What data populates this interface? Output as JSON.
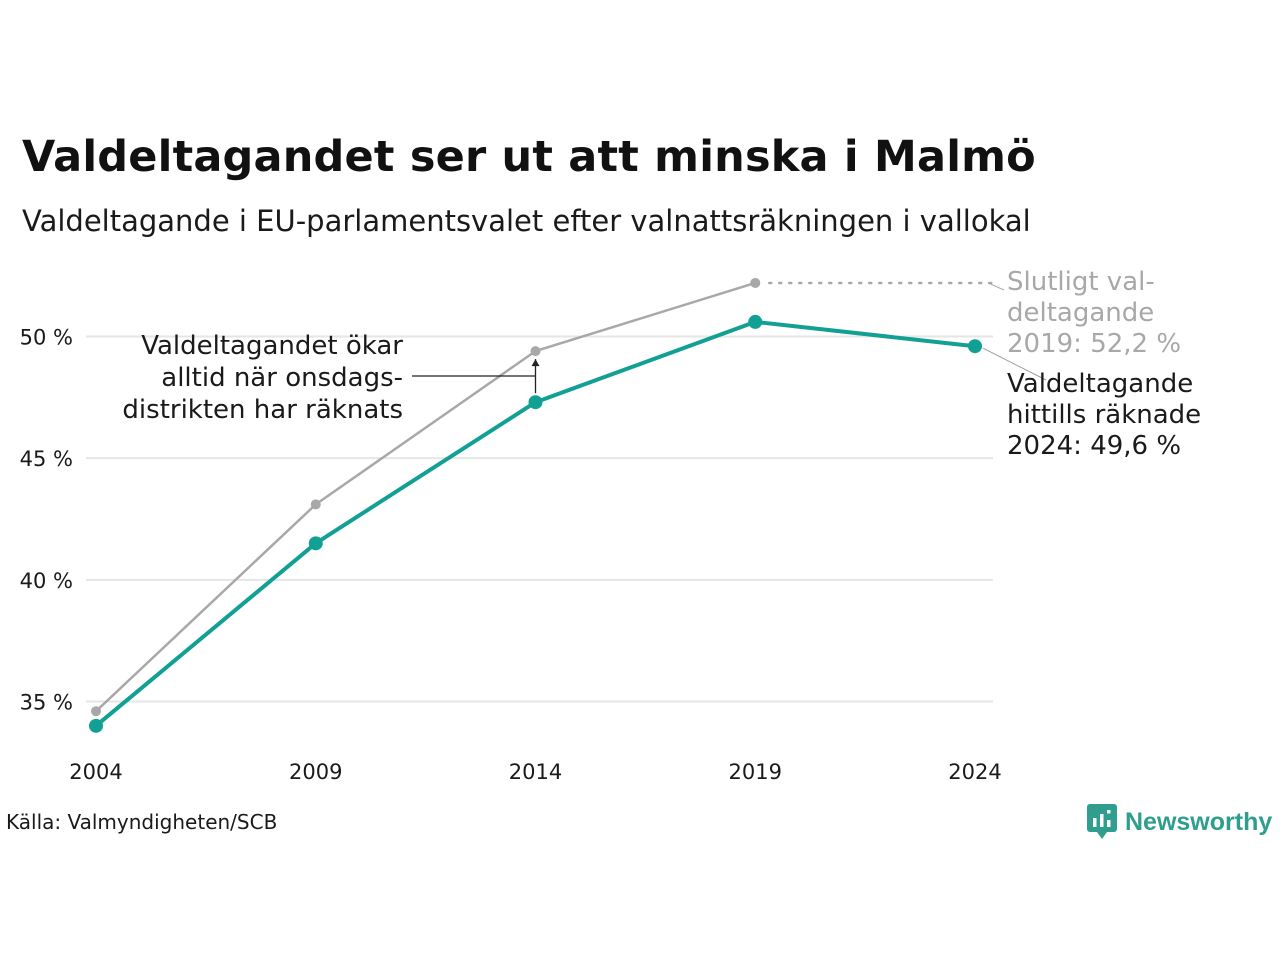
{
  "title": "Valdeltagandet ser ut att minska i Malmö",
  "subtitle": "Valdeltagande i EU-parlamentsvalet efter valnattsräkningen i vallokal",
  "source": "Källa: Valmyndigheten/SCB",
  "brand": "Newsworthy",
  "colors": {
    "counted": "#12a095",
    "final": "#a8a8a8",
    "grid": "#e6e6e6",
    "text": "#1a1a1a"
  },
  "chart_data": {
    "type": "line",
    "x": [
      2004,
      2009,
      2014,
      2019,
      2024
    ],
    "x_tick_labels": [
      "2004",
      "2009",
      "2014",
      "2019",
      "2024"
    ],
    "y_ticks": [
      35,
      40,
      45,
      50
    ],
    "y_tick_labels": [
      "35 %",
      "40 %",
      "45 %",
      "50 %"
    ],
    "ylim": [
      33,
      53
    ],
    "grid": true,
    "series": [
      {
        "key": "final",
        "values": [
          34.6,
          43.1,
          49.4,
          52.2,
          null
        ]
      },
      {
        "key": "counted",
        "values": [
          34.0,
          41.5,
          47.3,
          50.6,
          49.6
        ]
      }
    ],
    "annotations": {
      "final_label": [
        "Slutligt val-",
        "deltagande",
        "2019: 52,2 %"
      ],
      "counted_label": [
        "Valdeltagande",
        "hittills räknade",
        "2024: 49,6 %"
      ],
      "callout": [
        "Valdeltagandet ökar",
        "alltid när onsdags-",
        "distrikten har räknats"
      ]
    }
  }
}
